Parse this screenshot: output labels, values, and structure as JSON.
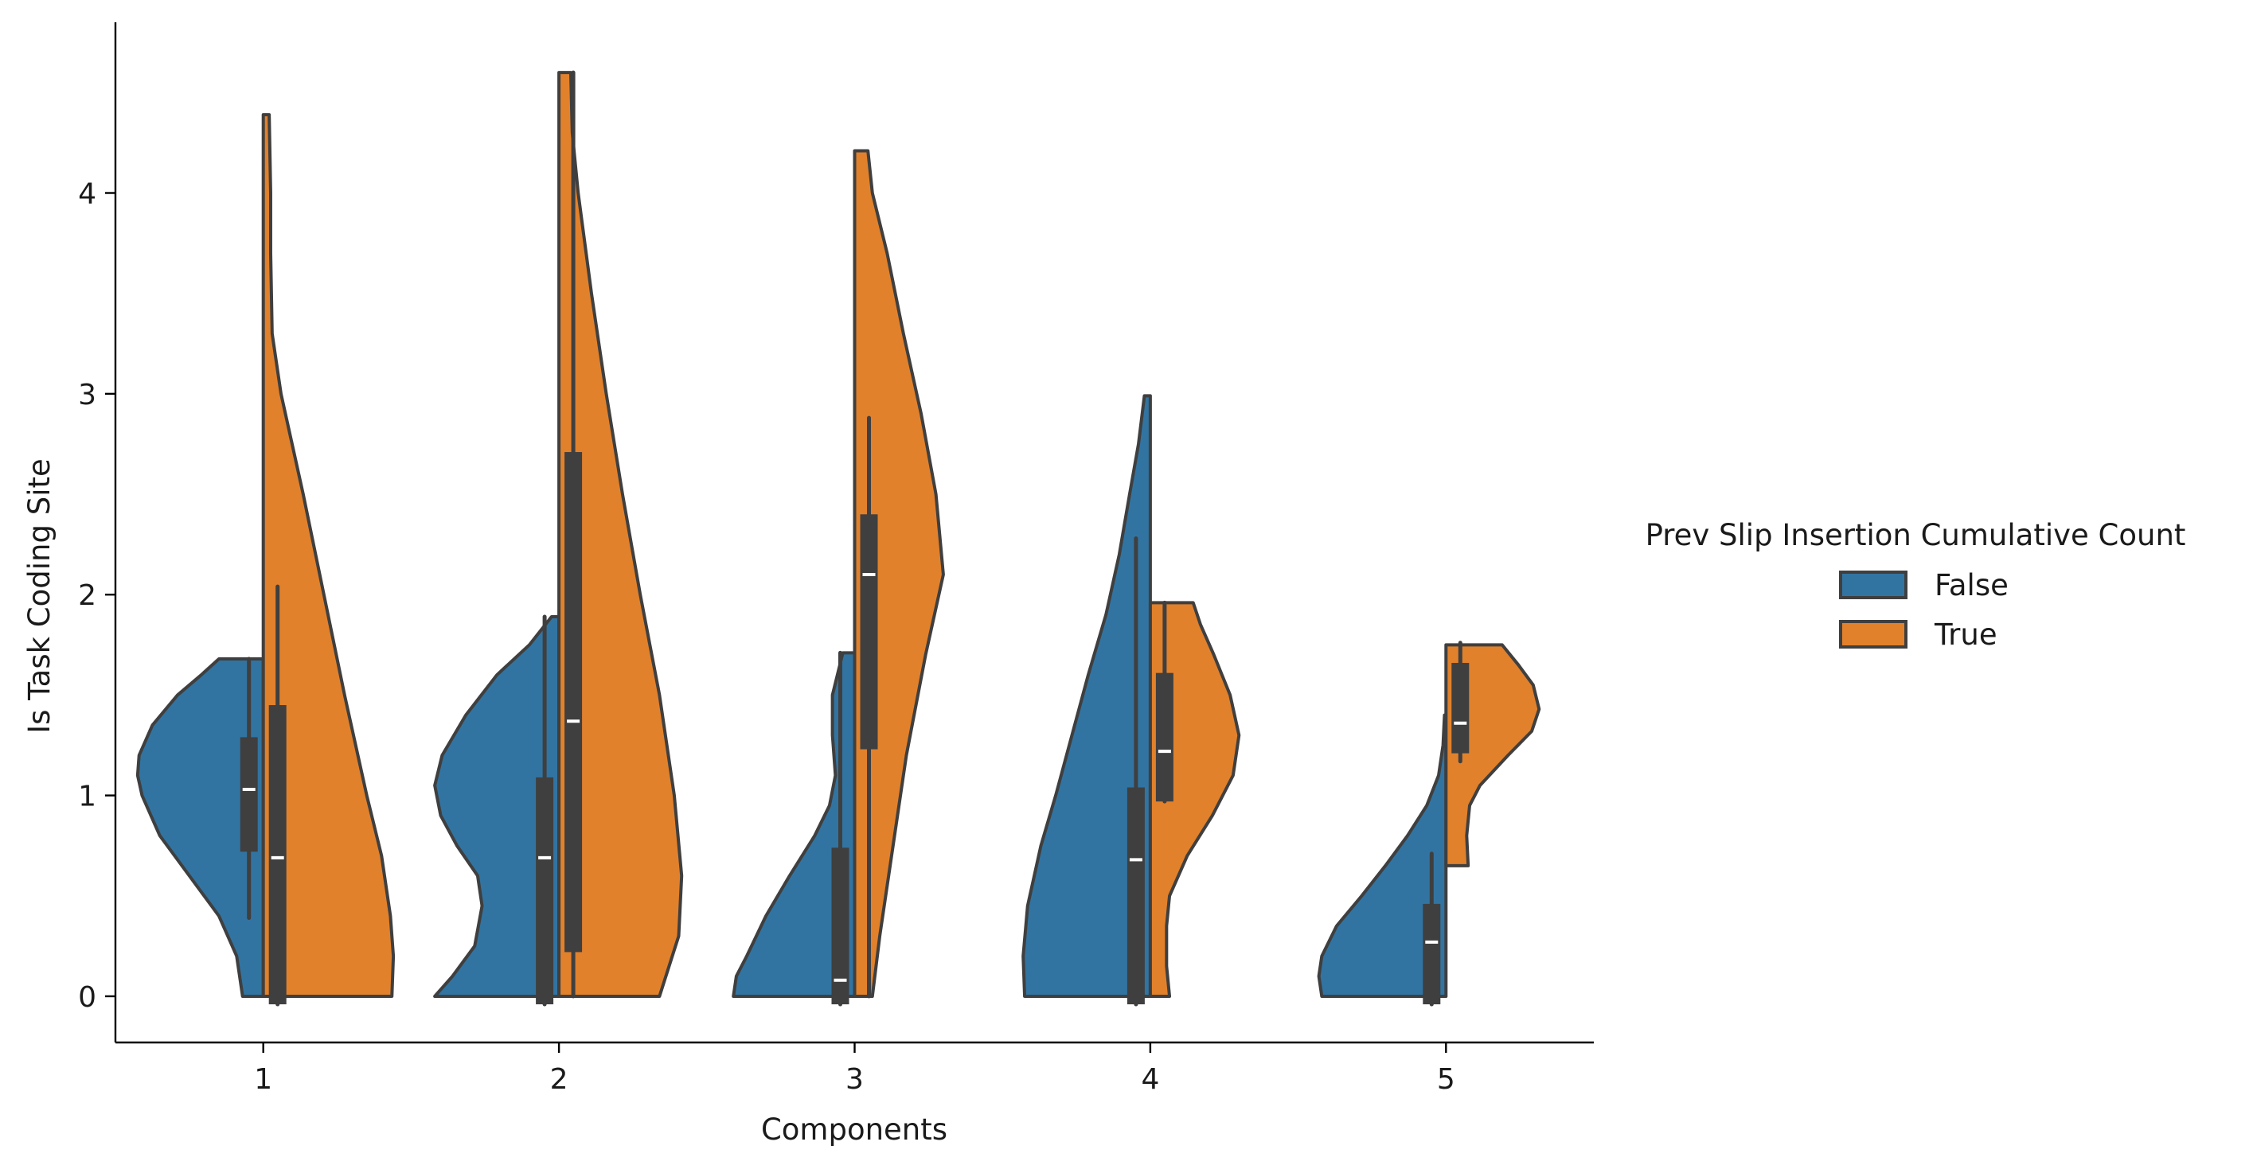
{
  "chart_data": {
    "type": "violin",
    "split": true,
    "xlabel": "Components",
    "ylabel": "Is Task Coding Site",
    "categories": [
      "1",
      "2",
      "3",
      "4",
      "5"
    ],
    "ylim": [
      -0.23,
      4.85
    ],
    "yticks": [
      0,
      1,
      2,
      3,
      4
    ],
    "grid": false,
    "legend": {
      "title": "Prev Slip Insertion Cumulative Count",
      "placement": "right",
      "entries": [
        "False",
        "True"
      ]
    },
    "colors": {
      "False": "#3274a1",
      "True": "#e1812c",
      "inner": "#3f3f3f"
    },
    "series": [
      {
        "name": "False",
        "values": [
          {
            "category": "1",
            "min": 0.0,
            "max": 1.68,
            "q1": 0.72,
            "median": 1.03,
            "q3": 1.29,
            "whisker_low": 0.39,
            "whisker_high": 1.68,
            "density": [
              [
                0.0,
                0.14
              ],
              [
                0.2,
                0.18
              ],
              [
                0.4,
                0.3
              ],
              [
                0.6,
                0.5
              ],
              [
                0.8,
                0.7
              ],
              [
                1.0,
                0.82
              ],
              [
                1.1,
                0.85
              ],
              [
                1.2,
                0.84
              ],
              [
                1.35,
                0.75
              ],
              [
                1.5,
                0.58
              ],
              [
                1.6,
                0.42
              ],
              [
                1.68,
                0.3
              ]
            ]
          },
          {
            "category": "2",
            "min": 0.0,
            "max": 1.89,
            "q1": -0.04,
            "median": 0.69,
            "q3": 1.09,
            "whisker_low": -0.04,
            "whisker_high": 1.89,
            "density": [
              [
                0.0,
                0.84
              ],
              [
                0.1,
                0.72
              ],
              [
                0.25,
                0.57
              ],
              [
                0.45,
                0.52
              ],
              [
                0.6,
                0.55
              ],
              [
                0.75,
                0.69
              ],
              [
                0.9,
                0.8
              ],
              [
                1.05,
                0.84
              ],
              [
                1.2,
                0.79
              ],
              [
                1.4,
                0.63
              ],
              [
                1.6,
                0.42
              ],
              [
                1.75,
                0.2
              ],
              [
                1.89,
                0.05
              ]
            ]
          },
          {
            "category": "3",
            "min": 0.0,
            "max": 1.71,
            "q1": -0.04,
            "median": 0.08,
            "q3": 0.74,
            "whisker_low": -0.04,
            "whisker_high": 1.71,
            "density": [
              [
                0.0,
                0.82
              ],
              [
                0.1,
                0.8
              ],
              [
                0.2,
                0.73
              ],
              [
                0.4,
                0.6
              ],
              [
                0.6,
                0.44
              ],
              [
                0.8,
                0.27
              ],
              [
                0.95,
                0.17
              ],
              [
                1.1,
                0.13
              ],
              [
                1.3,
                0.15
              ],
              [
                1.5,
                0.15
              ],
              [
                1.65,
                0.1
              ],
              [
                1.71,
                0.08
              ]
            ]
          },
          {
            "category": "4",
            "min": 0.0,
            "max": 2.99,
            "q1": -0.04,
            "median": 0.68,
            "q3": 1.04,
            "whisker_low": -0.04,
            "whisker_high": 2.28,
            "density": [
              [
                0.0,
                0.85
              ],
              [
                0.2,
                0.86
              ],
              [
                0.45,
                0.83
              ],
              [
                0.75,
                0.74
              ],
              [
                1.0,
                0.64
              ],
              [
                1.3,
                0.53
              ],
              [
                1.6,
                0.42
              ],
              [
                1.9,
                0.3
              ],
              [
                2.2,
                0.21
              ],
              [
                2.5,
                0.14
              ],
              [
                2.75,
                0.08
              ],
              [
                2.99,
                0.04
              ]
            ]
          },
          {
            "category": "5",
            "min": 0.0,
            "max": 1.4,
            "q1": -0.04,
            "median": 0.27,
            "q3": 0.46,
            "whisker_low": -0.04,
            "whisker_high": 0.71,
            "density": [
              [
                0.0,
                0.84
              ],
              [
                0.1,
                0.86
              ],
              [
                0.2,
                0.84
              ],
              [
                0.35,
                0.74
              ],
              [
                0.5,
                0.57
              ],
              [
                0.65,
                0.41
              ],
              [
                0.8,
                0.26
              ],
              [
                0.95,
                0.13
              ],
              [
                1.1,
                0.05
              ],
              [
                1.25,
                0.02
              ],
              [
                1.4,
                0.01
              ]
            ]
          }
        ]
      },
      {
        "name": "True",
        "values": [
          {
            "category": "1",
            "min": 0.0,
            "max": 4.39,
            "q1": -0.04,
            "median": 0.69,
            "q3": 1.45,
            "whisker_low": -0.04,
            "whisker_high": 2.04,
            "density": [
              [
                0.0,
                0.87
              ],
              [
                0.2,
                0.88
              ],
              [
                0.4,
                0.86
              ],
              [
                0.7,
                0.8
              ],
              [
                1.0,
                0.7
              ],
              [
                1.5,
                0.55
              ],
              [
                2.0,
                0.41
              ],
              [
                2.5,
                0.27
              ],
              [
                3.0,
                0.12
              ],
              [
                3.3,
                0.06
              ],
              [
                3.7,
                0.05
              ],
              [
                4.0,
                0.05
              ],
              [
                4.39,
                0.04
              ]
            ]
          },
          {
            "category": "2",
            "min": 0.0,
            "max": 4.6,
            "q1": 0.22,
            "median": 1.37,
            "q3": 2.71,
            "whisker_low": 0.0,
            "whisker_high": 4.6,
            "density": [
              [
                0.0,
                0.68
              ],
              [
                0.3,
                0.81
              ],
              [
                0.6,
                0.83
              ],
              [
                1.0,
                0.78
              ],
              [
                1.5,
                0.68
              ],
              [
                2.0,
                0.55
              ],
              [
                2.5,
                0.43
              ],
              [
                3.0,
                0.32
              ],
              [
                3.5,
                0.22
              ],
              [
                4.0,
                0.13
              ],
              [
                4.3,
                0.09
              ],
              [
                4.6,
                0.08
              ]
            ]
          },
          {
            "category": "3",
            "min": 0.0,
            "max": 4.21,
            "q1": 1.23,
            "median": 2.1,
            "q3": 2.4,
            "whisker_low": 0.0,
            "whisker_high": 2.88,
            "density": [
              [
                0.0,
                0.12
              ],
              [
                0.3,
                0.17
              ],
              [
                0.7,
                0.25
              ],
              [
                1.2,
                0.35
              ],
              [
                1.7,
                0.48
              ],
              [
                2.1,
                0.6
              ],
              [
                2.5,
                0.55
              ],
              [
                2.9,
                0.45
              ],
              [
                3.3,
                0.33
              ],
              [
                3.7,
                0.22
              ],
              [
                4.0,
                0.12
              ],
              [
                4.21,
                0.09
              ]
            ]
          },
          {
            "category": "4",
            "min": 0.0,
            "max": 1.96,
            "q1": 0.97,
            "median": 1.22,
            "q3": 1.61,
            "whisker_low": 0.97,
            "whisker_high": 1.96,
            "density": [
              [
                0.0,
                0.13
              ],
              [
                0.15,
                0.11
              ],
              [
                0.35,
                0.11
              ],
              [
                0.5,
                0.13
              ],
              [
                0.7,
                0.25
              ],
              [
                0.9,
                0.42
              ],
              [
                1.1,
                0.56
              ],
              [
                1.3,
                0.6
              ],
              [
                1.5,
                0.54
              ],
              [
                1.7,
                0.43
              ],
              [
                1.85,
                0.34
              ],
              [
                1.96,
                0.29
              ]
            ]
          },
          {
            "category": "5",
            "min": 0.65,
            "max": 1.75,
            "q1": 1.21,
            "median": 1.36,
            "q3": 1.66,
            "whisker_low": 1.17,
            "whisker_high": 1.76,
            "density": [
              [
                0.65,
                0.15
              ],
              [
                0.8,
                0.14
              ],
              [
                0.95,
                0.16
              ],
              [
                1.05,
                0.23
              ],
              [
                1.2,
                0.42
              ],
              [
                1.32,
                0.58
              ],
              [
                1.43,
                0.63
              ],
              [
                1.55,
                0.59
              ],
              [
                1.65,
                0.49
              ],
              [
                1.75,
                0.38
              ]
            ]
          }
        ]
      }
    ]
  }
}
